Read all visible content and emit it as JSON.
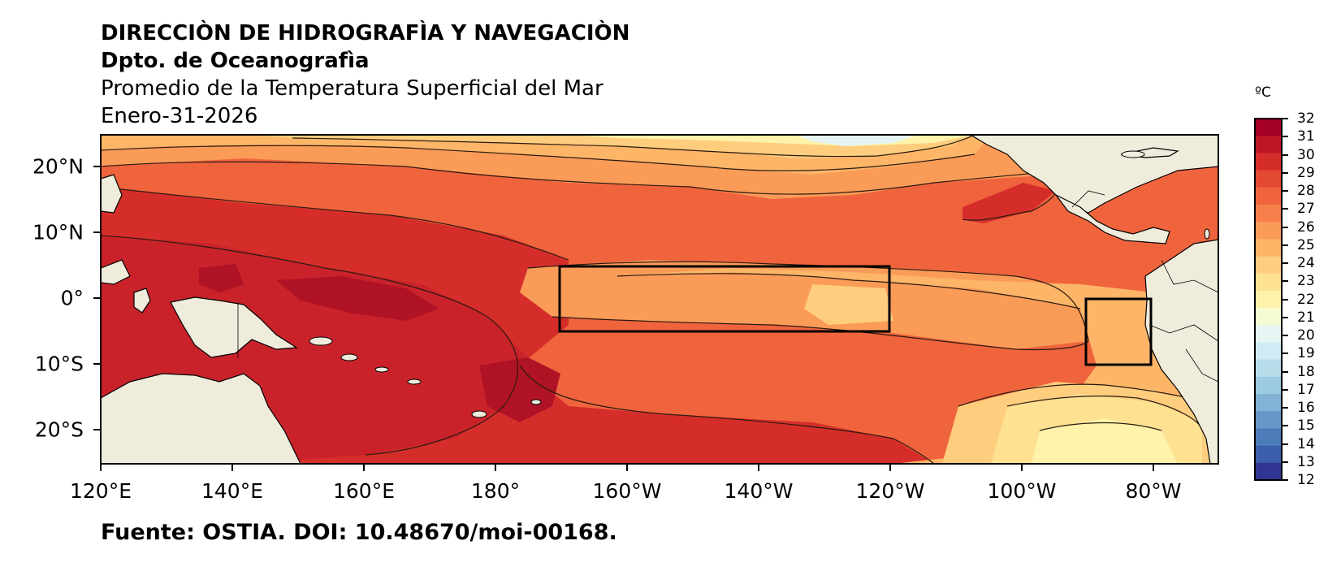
{
  "header": {
    "line1": "DIRECCIÒN DE HIDROGRAFÌA Y NAVEGACIÒN",
    "line2": "Dpto. de Oceanografìa",
    "line3": "Promedio de la Temperatura Superficial del Mar",
    "line4": "Enero-31-2026"
  },
  "footer": "Fuente: OSTIA. DOI: 10.48670/moi-00168.",
  "map": {
    "latitude_labels": [
      "20°N",
      "10°N",
      "0°",
      "10°S",
      "20°S"
    ],
    "longitude_labels": [
      "120°E",
      "140°E",
      "160°E",
      "180°",
      "160°W",
      "140°W",
      "120°W",
      "100°W",
      "80°W"
    ],
    "regions_outlined": [
      {
        "lon_range": [
          "170°W",
          "120°W"
        ],
        "lat_range": [
          "5°S",
          "5°N"
        ]
      },
      {
        "lon_range": [
          "90°W",
          "80°W"
        ],
        "lat_range": [
          "10°S",
          "0°"
        ]
      }
    ]
  },
  "colorbar": {
    "unit": "ºC",
    "labels": [
      "32",
      "31",
      "30",
      "29",
      "28",
      "27",
      "26",
      "25",
      "24",
      "23",
      "22",
      "21",
      "20",
      "19",
      "18",
      "17",
      "16",
      "15",
      "14",
      "13",
      "12"
    ],
    "colors": [
      "#a50026",
      "#bd1726",
      "#d52e2a",
      "#e34933",
      "#f0643d",
      "#f67f4b",
      "#fa9b58",
      "#fdb567",
      "#fecd7d",
      "#fee191",
      "#fff2aa",
      "#f5fbd3",
      "#e6f5f3",
      "#d0ebf4",
      "#b7ddeb",
      "#9ccae1",
      "#80b3d5",
      "#6598c8",
      "#4c7dba",
      "#3b5faa",
      "#313695"
    ]
  }
}
